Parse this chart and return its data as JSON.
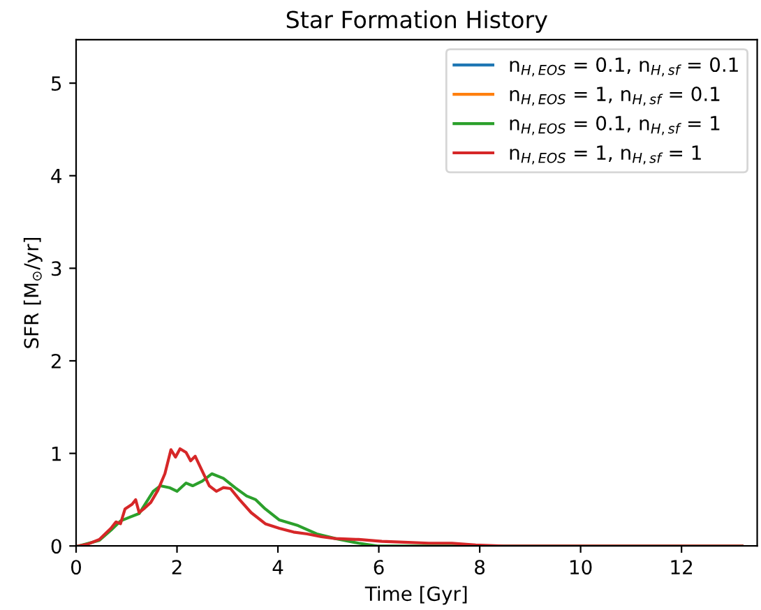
{
  "chart_data": {
    "type": "line",
    "title": "Star Formation History",
    "xlabel": "Time [Gyr]",
    "ylabel": "SFR [M$_{⊙}$/yr]",
    "xlim": [
      0,
      13.5
    ],
    "ylim": [
      0,
      5.47
    ],
    "xticks": [
      0,
      2,
      4,
      6,
      8,
      10,
      12
    ],
    "yticks": [
      0,
      1,
      2,
      3,
      4,
      5
    ],
    "grid": false,
    "legend": "top right",
    "marker": "none",
    "line_style": "solid",
    "series": [
      {
        "name": "n$_{H,EOS}$ = 0.1, n$_{H,sf}$ = 0.1",
        "color": "#1f77b4"
      },
      {
        "name": "n$_{H,EOS}$ = 1, n$_{H,sf}$ = 0.1",
        "color": "#ff7f0e"
      },
      {
        "name": "n$_{H,EOS}$ = 0.1, n$_{H,sf}$ = 1",
        "color": "#2ca02c",
        "x": [
          0.05,
          0.46,
          0.69,
          0.88,
          1.06,
          1.25,
          1.39,
          1.53,
          1.67,
          1.85,
          2.0,
          2.18,
          2.31,
          2.5,
          2.69,
          2.92,
          3.15,
          3.38,
          3.56,
          3.75,
          4.03,
          4.4,
          4.77,
          5.14,
          5.6,
          5.97,
          13.2
        ],
        "values": [
          0,
          0.06,
          0.17,
          0.27,
          0.31,
          0.35,
          0.47,
          0.59,
          0.65,
          0.63,
          0.59,
          0.68,
          0.65,
          0.7,
          0.78,
          0.73,
          0.63,
          0.54,
          0.5,
          0.4,
          0.28,
          0.22,
          0.13,
          0.08,
          0.03,
          0,
          0
        ]
      },
      {
        "name": "n$_{H,EOS}$ = 1, n$_{H,sf}$ = 1",
        "color": "#d62728",
        "x": [
          0.05,
          0.23,
          0.46,
          0.69,
          0.79,
          0.88,
          0.97,
          1.11,
          1.18,
          1.25,
          1.34,
          1.48,
          1.62,
          1.76,
          1.88,
          1.97,
          2.06,
          2.18,
          2.27,
          2.36,
          2.5,
          2.64,
          2.78,
          2.92,
          3.06,
          3.24,
          3.47,
          3.75,
          4.03,
          4.31,
          4.58,
          4.86,
          5.14,
          5.6,
          6.06,
          6.5,
          6.99,
          7.45,
          7.92,
          8.47,
          13.2
        ],
        "values": [
          0,
          0.02,
          0.07,
          0.19,
          0.26,
          0.24,
          0.4,
          0.45,
          0.5,
          0.36,
          0.4,
          0.47,
          0.6,
          0.78,
          1.04,
          0.96,
          1.05,
          1.01,
          0.92,
          0.97,
          0.81,
          0.65,
          0.59,
          0.63,
          0.62,
          0.5,
          0.36,
          0.24,
          0.19,
          0.15,
          0.13,
          0.1,
          0.08,
          0.07,
          0.05,
          0.04,
          0.03,
          0.03,
          0.01,
          0,
          0
        ]
      }
    ]
  }
}
